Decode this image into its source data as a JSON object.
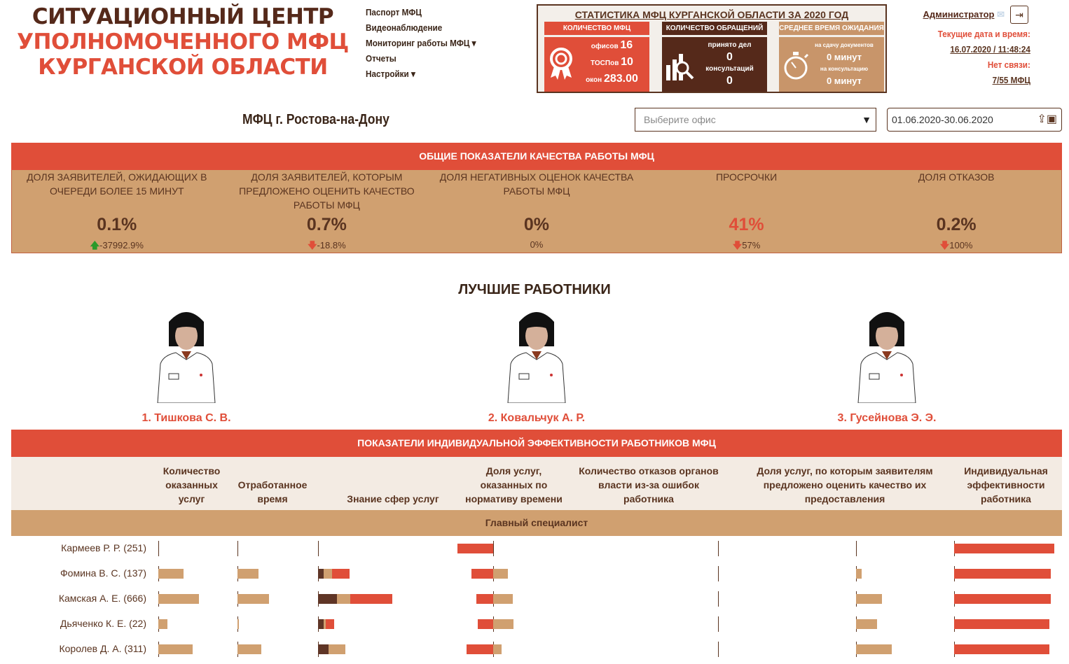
{
  "logo": {
    "line1": "СИТУАЦИОННЫЙ ЦЕНТР",
    "line2": "УПОЛНОМОЧЕННОГО МФЦ",
    "line3": "КУРГАНСКОЙ ОБЛАСТИ"
  },
  "nav": [
    "Паспорт МФЦ",
    "Видеонаблюдение",
    "Мониторинг работы МФЦ ▾",
    "Отчеты",
    "Настройки ▾"
  ],
  "stats": {
    "title": "СТАТИСТИКА МФЦ КУРГАНСКОЙ ОБЛАСТИ ЗА 2020 ГОД",
    "mfc": {
      "header": "КОЛИЧЕСТВО МФЦ",
      "offices_label": "офисов",
      "offices": "16",
      "tosp_label": "ТОСПов",
      "tosp": "10",
      "windows_label": "окон",
      "windows": "283.00"
    },
    "requests": {
      "header": "КОЛИЧЕСТВО ОБРАЩЕНИЙ",
      "cases_label": "принято дел",
      "cases": "0",
      "consult_label": "консультаций",
      "consult": "0"
    },
    "wait": {
      "header": "СРЕДНЕЕ ВРЕМЯ ОЖИДАНИЯ",
      "docs_label": "на сдачу документов",
      "docs": "0 минут",
      "consult_label": "на консультацию",
      "consult": "0 минут"
    },
    "colors": {
      "red": "#e04e39",
      "brown": "#55291a",
      "tan": "#c8956a"
    }
  },
  "user": {
    "name": "Администратор",
    "datetime_label": "Текущие дата и время:",
    "datetime": "16.07.2020 / 11:48:24",
    "nolink_label": "Нет связи:",
    "nolink": "7/55 МФЦ"
  },
  "office_title": "МФЦ г. Ростова-на-Дону",
  "office_select": {
    "placeholder": "Выберите офис"
  },
  "date_range": "01.06.2020-30.06.2020",
  "quality": {
    "title": "ОБЩИЕ ПОКАЗАТЕЛИ КАЧЕСТВА РАБОТЫ МФЦ",
    "items": [
      {
        "label": "ДОЛЯ ЗАЯВИТЕЛЕЙ, ОЖИДАЮЩИХ В ОЧЕРЕДИ БОЛЕЕ 15 МИНУТ",
        "value": "0.1%",
        "change": "-37992.9%",
        "arrow": "up",
        "arrow_color": "#2a9a2a",
        "value_color": "#5a3420"
      },
      {
        "label": "ДОЛЯ ЗАЯВИТЕЛЕЙ, КОТОРЫМ ПРЕДЛОЖЕНО ОЦЕНИТЬ КАЧЕСТВО РАБОТЫ МФЦ",
        "value": "0.7%",
        "change": "-18.8%",
        "arrow": "down",
        "arrow_color": "#e04e39",
        "value_color": "#5a3420"
      },
      {
        "label": "ДОЛЯ НЕГАТИВНЫХ ОЦЕНОК КАЧЕСТВА РАБОТЫ МФЦ",
        "value": "0%",
        "change": "0%",
        "arrow": "",
        "arrow_color": "",
        "value_color": "#5a3420"
      },
      {
        "label": "ПРОСРОЧКИ",
        "value": "41%",
        "change": "57%",
        "arrow": "down",
        "arrow_color": "#e04e39",
        "value_color": "#e04e39"
      },
      {
        "label": "ДОЛЯ ОТКАЗОВ",
        "value": "0.2%",
        "change": "100%",
        "arrow": "down",
        "arrow_color": "#e04e39",
        "value_color": "#5a3420"
      }
    ]
  },
  "best": {
    "title": "ЛУЧШИЕ РАБОТНИКИ",
    "workers": [
      "1. Тишкова С. В.",
      "2. Ковальчук А. Р.",
      "3. Гусейнова Э. Э."
    ]
  },
  "efficiency": {
    "title": "ПОКАЗАТЕЛИ ИНДИВИДУАЛЬНОЙ ЭФФЕКТИВНОСТИ РАБОТНИКОВ МФЦ",
    "columns": [
      "Количество оказанных услуг",
      "Отработанное время",
      "Знание сфер услуг",
      "Доля услуг, оказанных по нормативу времени",
      "Количество отказов органов власти из-за ошибок работника",
      "Доля услуг, по которым заявителям предложено оценить качество их предоставления",
      "Индивидуальная эффективности работника"
    ],
    "group": "Главный специалист",
    "rows": [
      {
        "name": "Кармеев Р. Р. (251)",
        "services": 0,
        "time": 0,
        "knowledge": [
          0,
          0,
          0
        ],
        "norm": [
          51,
          0
        ],
        "refusals": 0,
        "rated": 0,
        "efficiency": 143
      },
      {
        "name": "Фомина В. С. (137)",
        "services": 36,
        "time": 30,
        "knowledge": [
          8,
          12,
          25
        ],
        "norm": [
          31,
          21
        ],
        "refusals": 0,
        "rated": 8,
        "efficiency": 138
      },
      {
        "name": "Камская А. Е. (666)",
        "services": 58,
        "time": 45,
        "knowledge": [
          27,
          19,
          60
        ],
        "norm": [
          24,
          28
        ],
        "refusals": 0,
        "rated": 37,
        "efficiency": 138
      },
      {
        "name": "Дьяченко К. Е. (22)",
        "services": 13,
        "time": 2,
        "knowledge": [
          8,
          3,
          12
        ],
        "norm": [
          22,
          29
        ],
        "refusals": 0,
        "rated": 30,
        "efficiency": 136
      },
      {
        "name": "Королев Д. А. (311)",
        "services": 49,
        "time": 34,
        "knowledge": [
          15,
          24,
          0
        ],
        "norm": [
          38,
          12
        ],
        "refusals": 0,
        "rated": 51,
        "efficiency": 136
      }
    ]
  }
}
